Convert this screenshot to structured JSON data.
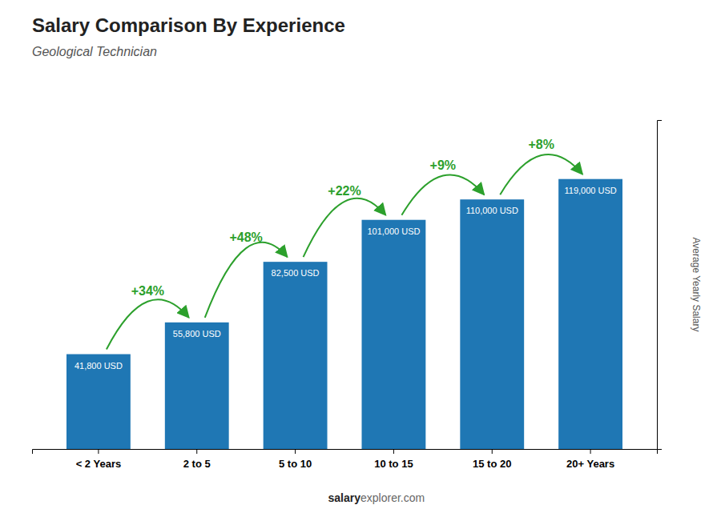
{
  "chart_data": {
    "type": "bar",
    "title": "Salary Comparison By Experience",
    "subtitle": "Geological Technician",
    "ylabel": "Average Yearly Salary",
    "categories": [
      "< 2 Years",
      "2 to 5",
      "5 to 10",
      "10 to 15",
      "15 to 20",
      "20+ Years"
    ],
    "values": [
      41800,
      55800,
      82500,
      101000,
      110000,
      119000
    ],
    "value_labels": [
      "41,800 USD",
      "55,800 USD",
      "82,500 USD",
      "101,000 USD",
      "110,000 USD",
      "119,000 USD"
    ],
    "data_labels": true,
    "ylim": [
      0,
      145000
    ],
    "yticks": [],
    "tick_labels": "x",
    "grid": false,
    "annotations": [
      "+34%",
      "+48%",
      "+22%",
      "+9%",
      "+8%"
    ],
    "footer": [
      "salary",
      "explorer.com"
    ]
  }
}
